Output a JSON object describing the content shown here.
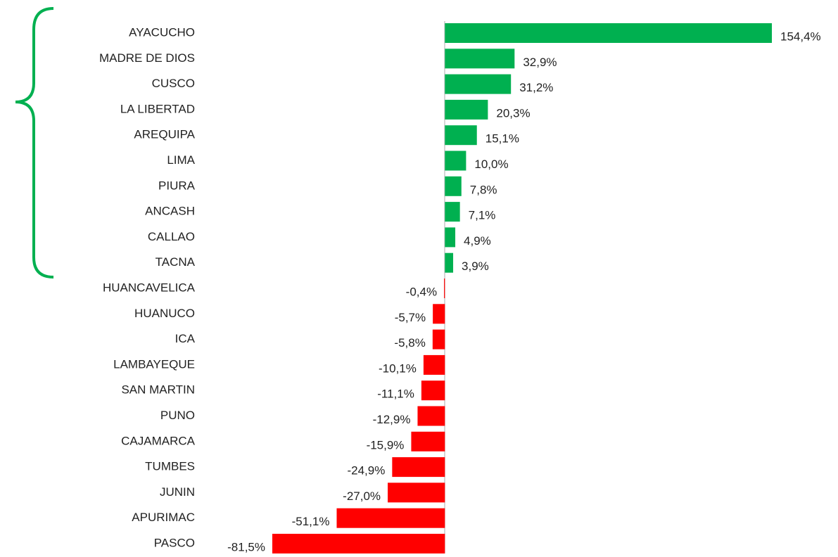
{
  "chart_data": {
    "type": "hbar",
    "categories": [
      "AYACUCHO",
      "MADRE DE DIOS",
      "CUSCO",
      "LA LIBERTAD",
      "AREQUIPA",
      "LIMA",
      "PIURA",
      "ANCASH",
      "CALLAO",
      "TACNA",
      "HUANCAVELICA",
      "HUANUCO",
      "ICA",
      "LAMBAYEQUE",
      "SAN MARTIN",
      "PUNO",
      "CAJAMARCA",
      "TUMBES",
      "JUNIN",
      "APURIMAC",
      "PASCO"
    ],
    "values": [
      154.4,
      32.9,
      31.2,
      20.3,
      15.1,
      10.0,
      7.8,
      7.1,
      4.9,
      3.9,
      -0.4,
      -5.7,
      -5.8,
      -10.1,
      -11.1,
      -12.9,
      -15.9,
      -24.9,
      -27.0,
      -51.1,
      -81.5
    ],
    "value_labels": [
      "154,4%",
      "32,9%",
      "31,2%",
      "20,3%",
      "15,1%",
      "10,0%",
      "7,8%",
      "7,1%",
      "4,9%",
      "3,9%",
      "-0,4%",
      "-5,7%",
      "-5,8%",
      "-10,1%",
      "-11,1%",
      "-12,9%",
      "-15,9%",
      "-24,9%",
      "-27,0%",
      "-51,1%",
      "-81,5%"
    ],
    "positive_color": "#00b050",
    "negative_color": "#ff0000"
  }
}
